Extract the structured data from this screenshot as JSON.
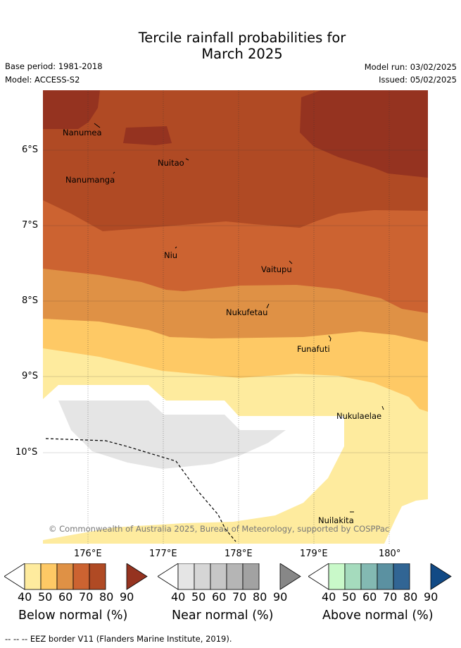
{
  "header": {
    "title_line1": "Tercile rainfall probabilities for",
    "title_line2": "March 2025",
    "base_period": "Base period: 1981-2018",
    "model": "Model: ACCESS-S2",
    "model_run": "Model run: 03/02/2025",
    "issued": "Issued: 05/02/2025"
  },
  "map": {
    "lat_labels": [
      "6°S",
      "7°S",
      "8°S",
      "9°S",
      "10°S"
    ],
    "lon_labels": [
      "176°E",
      "177°E",
      "178°E",
      "179°E",
      "180°"
    ],
    "islands": [
      "Nanumea",
      "Nuitao",
      "Nanumanga",
      "Niu",
      "Vaitupu",
      "Nukufetau",
      "Funafuti",
      "Nukulaelae",
      "Nuilakita"
    ],
    "credit": "© Commonwealth of Australia 2025, Bureau of Meteorology, supported by COSPPac",
    "colors": {
      "below_40": "#feeb9e",
      "below_50": "#fec965",
      "below_60": "#df9145",
      "below_70": "#cc6331",
      "below_80": "#b04a24",
      "below_90": "#953320",
      "near_40": "#e5e5e5"
    }
  },
  "legends": [
    {
      "label": "Below normal (%)",
      "ticks": [
        "40",
        "50",
        "60",
        "70",
        "80",
        "90"
      ],
      "colors": [
        "#feeb9e",
        "#fec965",
        "#df9145",
        "#cc6331",
        "#b04a24",
        "#953320"
      ]
    },
    {
      "label": "Near normal (%)",
      "ticks": [
        "40",
        "50",
        "60",
        "70",
        "80",
        "90"
      ],
      "colors": [
        "#e5e5e5",
        "#d6d6d6",
        "#c6c6c6",
        "#b5b5b5",
        "#a2a2a2",
        "#878787"
      ]
    },
    {
      "label": "Above normal (%)",
      "ticks": [
        "40",
        "50",
        "60",
        "70",
        "80",
        "90"
      ],
      "colors": [
        "#c9f9c9",
        "#a5dbbd",
        "#83b9b2",
        "#5b91a1",
        "#316594",
        "#124a85"
      ]
    }
  ],
  "footer": "--  --  -- EEZ border V11 (Flanders Marine Institute, 2019)."
}
